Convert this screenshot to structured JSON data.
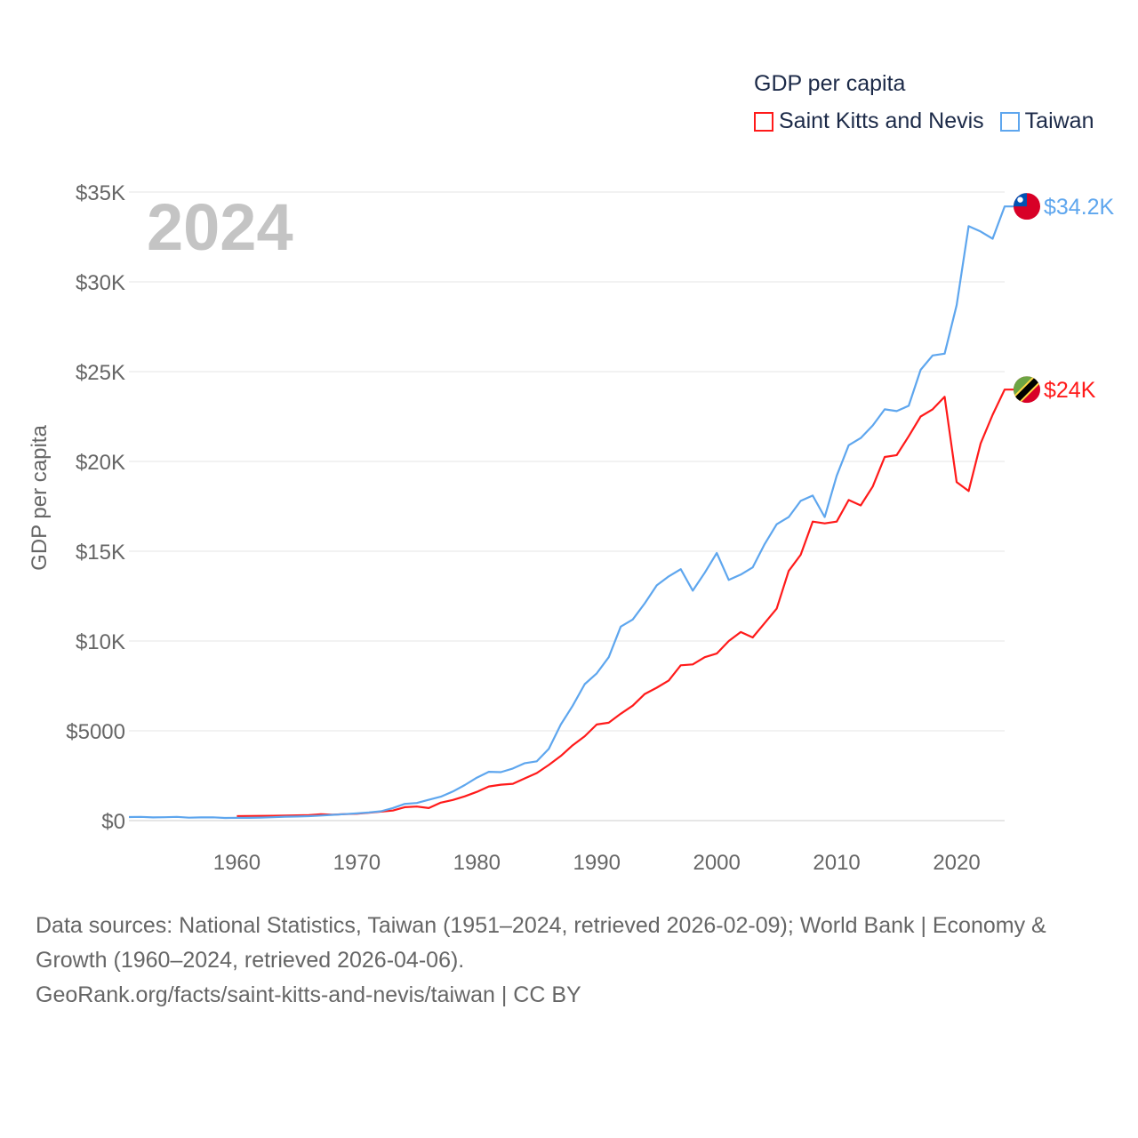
{
  "legend": {
    "title": "GDP per capita",
    "items": [
      {
        "label": "Saint Kitts and Nevis",
        "color": "#ff1a1a"
      },
      {
        "label": "Taiwan",
        "color": "#5ea6ee"
      }
    ]
  },
  "chart_data": {
    "type": "line",
    "title": "GDP per capita",
    "year_label": "2024",
    "xlabel": "",
    "ylabel": "GDP per capita",
    "xlim": [
      1951,
      2024
    ],
    "ylim": [
      0,
      35000
    ],
    "x_ticks": [
      1960,
      1970,
      1980,
      1990,
      2000,
      2010,
      2020
    ],
    "y_ticks": [
      0,
      5000,
      10000,
      15000,
      20000,
      25000,
      30000,
      35000
    ],
    "y_tick_labels": [
      "$0",
      "$5000",
      "$10K",
      "$15K",
      "$20K",
      "$25K",
      "$30K",
      "$35K"
    ],
    "grid": true,
    "legend_position": "top-right",
    "series": [
      {
        "name": "Taiwan",
        "color": "#5ea6ee",
        "end_label": "$34.2K",
        "flag": "taiwan",
        "start_year": 1951,
        "values": [
          196,
          208,
          180,
          190,
          210,
          165,
          178,
          183,
          150,
          160,
          155,
          170,
          190,
          220,
          230,
          250,
          280,
          320,
          360,
          400,
          450,
          520,
          700,
          930,
          980,
          1160,
          1330,
          1620,
          1980,
          2390,
          2720,
          2700,
          2900,
          3200,
          3300,
          4000,
          5350,
          6400,
          7600,
          8200,
          9100,
          10800,
          11200,
          12100,
          13100,
          13600,
          14000,
          12800,
          13800,
          14900,
          13400,
          13700,
          14100,
          15400,
          16500,
          16900,
          17800,
          18100,
          16900,
          19200,
          20900,
          21300,
          22000,
          22900,
          22800,
          23100,
          25100,
          25900,
          26000,
          28700,
          33100,
          32800,
          32400,
          34200
        ]
      },
      {
        "name": "Saint Kitts and Nevis",
        "color": "#ff1a1a",
        "end_label": "$24K",
        "flag": "saint-kitts-and-nevis",
        "start_year": 1960,
        "values": [
          250,
          255,
          260,
          265,
          280,
          290,
          300,
          350,
          330,
          360,
          380,
          440,
          500,
          560,
          750,
          780,
          700,
          1000,
          1150,
          1350,
          1600,
          1900,
          2000,
          2050,
          2350,
          2650,
          3100,
          3600,
          4200,
          4700,
          5350,
          5450,
          5950,
          6400,
          7050,
          7400,
          7800,
          8650,
          8700,
          9100,
          9300,
          10000,
          10500,
          10200,
          11000,
          11800,
          13900,
          14800,
          16650,
          16550,
          16650,
          17850,
          17550,
          18600,
          20250,
          20350,
          21400,
          22500,
          22900,
          23600,
          18850,
          18350,
          21000,
          22600,
          24000
        ]
      }
    ]
  },
  "footer": {
    "line1": "Data sources: National Statistics, Taiwan (1951–2024, retrieved 2026-02-09); World Bank | Economy & Growth (1960–2024, retrieved 2026-04-06).",
    "line2": "GeoRank.org/facts/saint-kitts-and-nevis/taiwan | CC BY"
  }
}
